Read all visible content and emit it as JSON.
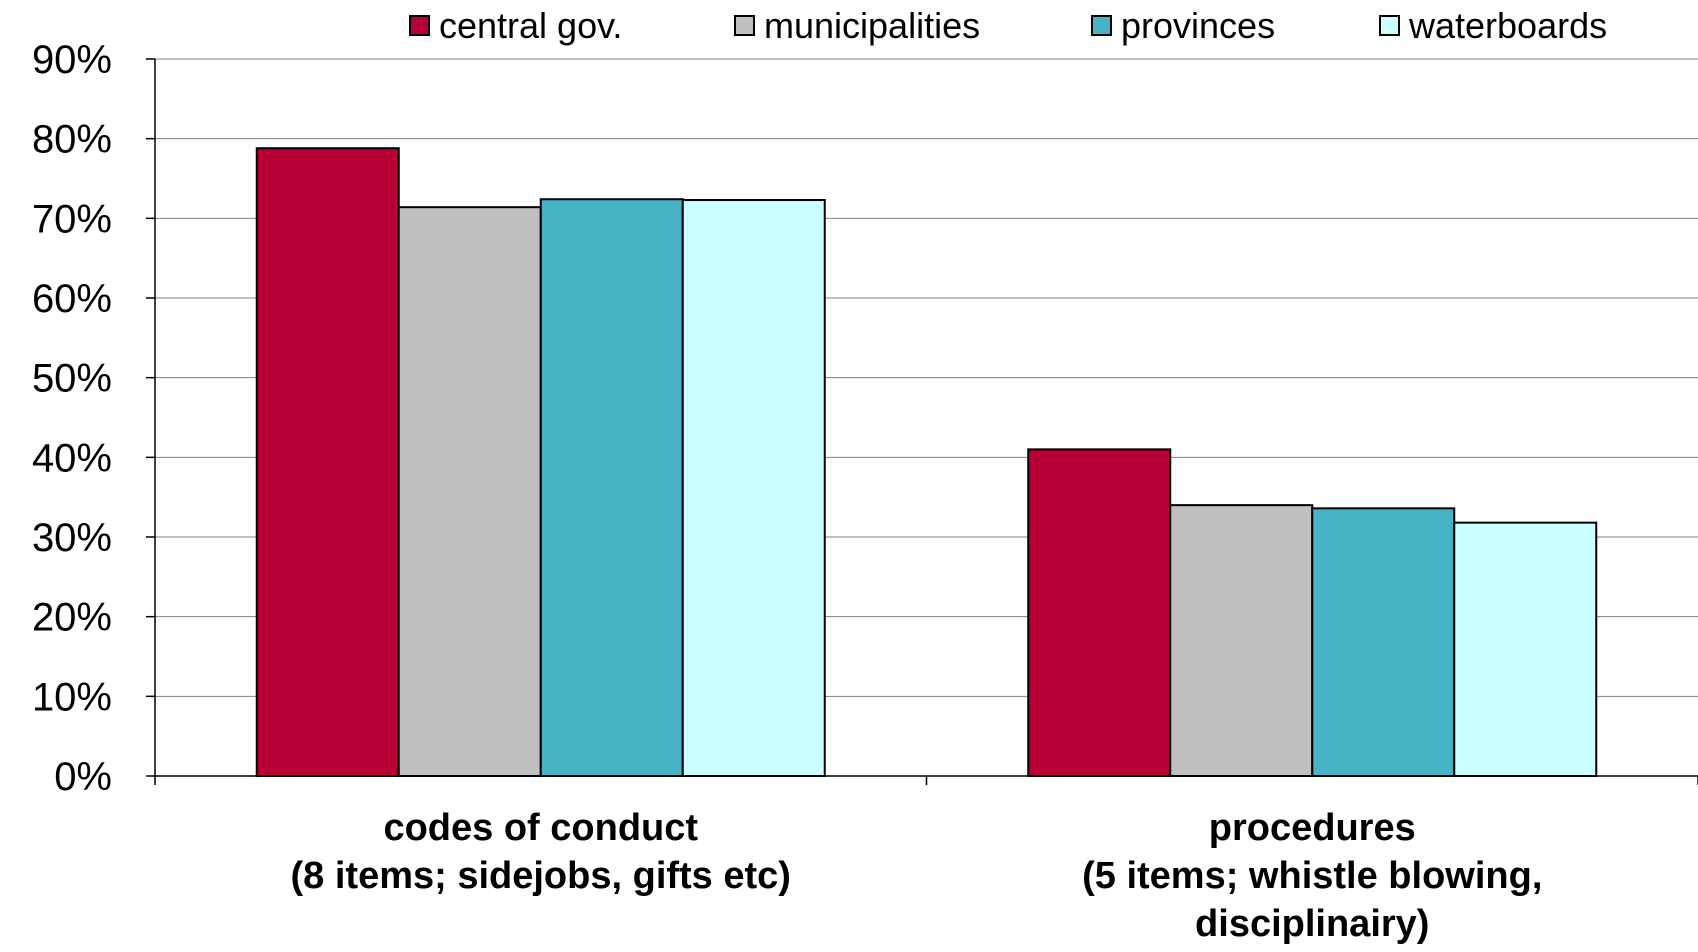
{
  "chart_data": {
    "type": "bar",
    "categories": [
      [
        "codes of conduct",
        "(8 items; sidejobs, gifts etc)"
      ],
      [
        "procedures",
        "(5 items; whistle blowing,",
        "disciplinairy)"
      ]
    ],
    "series": [
      {
        "name": "central gov.",
        "color": "#B80037",
        "values": [
          78.8,
          41.0
        ]
      },
      {
        "name": "municipalities",
        "color": "#C0C0C0",
        "values": [
          71.4,
          34.0
        ]
      },
      {
        "name": "provinces",
        "color": "#46B3C7",
        "values": [
          72.4,
          33.6
        ]
      },
      {
        "name": "waterboards",
        "color": "#CCFFFF",
        "values": [
          72.3,
          31.8
        ]
      }
    ],
    "y_ticks": [
      "0%",
      "10%",
      "20%",
      "30%",
      "40%",
      "50%",
      "60%",
      "70%",
      "80%",
      "90%"
    ],
    "ylim": [
      0,
      90
    ],
    "y_unit": "percent",
    "grid": true,
    "legend_position": "top"
  }
}
